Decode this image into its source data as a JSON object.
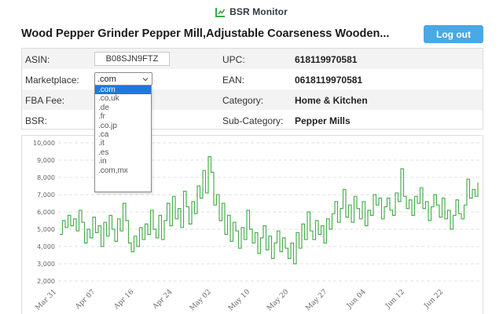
{
  "brand": {
    "name": "BSR Monitor",
    "icon": "bar-chart-icon"
  },
  "product": {
    "title": "Wood Pepper Grinder Pepper Mill,Adjustable Coarseness Wooden..."
  },
  "header": {
    "logout_label": "Log out"
  },
  "info": {
    "asin_label": "ASIN:",
    "asin_value": "B08SJN9FTZ",
    "marketplace_label": "Marketplace:",
    "marketplace_value": ".com",
    "fba_label": "FBA Fee:",
    "bsr_label": "BSR:",
    "upc_label": "UPC:",
    "upc_value": "618119970581",
    "ean_label": "EAN:",
    "ean_value": "0618119970581",
    "category_label": "Category:",
    "category_value": "Home & Kitchen",
    "subcategory_label": "Sub-Category:",
    "subcategory_value": "Pepper Mills"
  },
  "marketplace_options": [
    ".com",
    ".co,uk",
    ".de",
    ".fr",
    ".co.jp",
    ".ca",
    ".it",
    ".es",
    ".in",
    ".com,mx"
  ],
  "colors": {
    "accent": "#4aa8e6",
    "line": "#4caf50",
    "selected": "#1e78e0"
  },
  "chart_data": {
    "type": "line",
    "title": "",
    "xlabel": "",
    "ylabel": "",
    "ylim": [
      2000,
      10000
    ],
    "yticks": [
      "10,000",
      "9,000",
      "8,000",
      "7,000",
      "6,000",
      "5,000",
      "4,000",
      "3,000",
      "2,000"
    ],
    "xticks": [
      "Mar 31",
      "Apr 07",
      "Apr 16",
      "Apr 24",
      "May 02",
      "May 10",
      "May 20",
      "May 27",
      "Jun 04",
      "Jun 12",
      "Jun 22"
    ],
    "grid": true,
    "x_range": [
      "Mar 31",
      "Jun 30"
    ],
    "series": [
      {
        "values": [
          4700,
          5500,
          5100,
          5800,
          5200,
          5600,
          4900,
          6100,
          5400,
          4200,
          5000,
          4500,
          5700,
          4800,
          5200,
          4000,
          5400,
          4600,
          5800,
          5000,
          4300,
          5600,
          4900,
          6500,
          5500,
          4200,
          3700,
          4600,
          4000,
          5100,
          4400,
          5300,
          4700,
          6100,
          5000,
          4500,
          5800,
          4400,
          5500,
          6500,
          5200,
          6900,
          5600,
          6200,
          5100,
          7200,
          6300,
          5300,
          6600,
          5900,
          7500,
          6800,
          8400,
          7100,
          9200,
          8300,
          6400,
          7000,
          5500,
          6500,
          4700,
          5800,
          4300,
          5400,
          4900,
          3900,
          5100,
          4400,
          6100,
          5000,
          4200,
          4800,
          3600,
          4500,
          5200,
          3800,
          4600,
          3300,
          4200,
          4900,
          3700,
          4500,
          3900,
          3300,
          4200,
          3000,
          4800,
          3900,
          5300,
          4400,
          6000,
          4900,
          4400,
          5500,
          4700,
          5200,
          4200,
          5600,
          5000,
          5900,
          6600,
          5400,
          6200,
          7300,
          5700,
          6400,
          5400,
          6900,
          6200,
          5600,
          6600,
          5200,
          6100,
          5800,
          7000,
          6400,
          6800,
          5600,
          6300,
          6800,
          6100,
          5800,
          7100,
          6600,
          8500,
          6900,
          6200,
          6700,
          5800,
          6900,
          6500,
          7400,
          6200,
          6600,
          5500,
          6300,
          7000,
          6400,
          5700,
          6800,
          5600,
          6100,
          5000,
          5800,
          6700,
          5900,
          5600,
          6400,
          7900,
          6800,
          7300,
          6900,
          7700
        ]
      }
    ]
  }
}
